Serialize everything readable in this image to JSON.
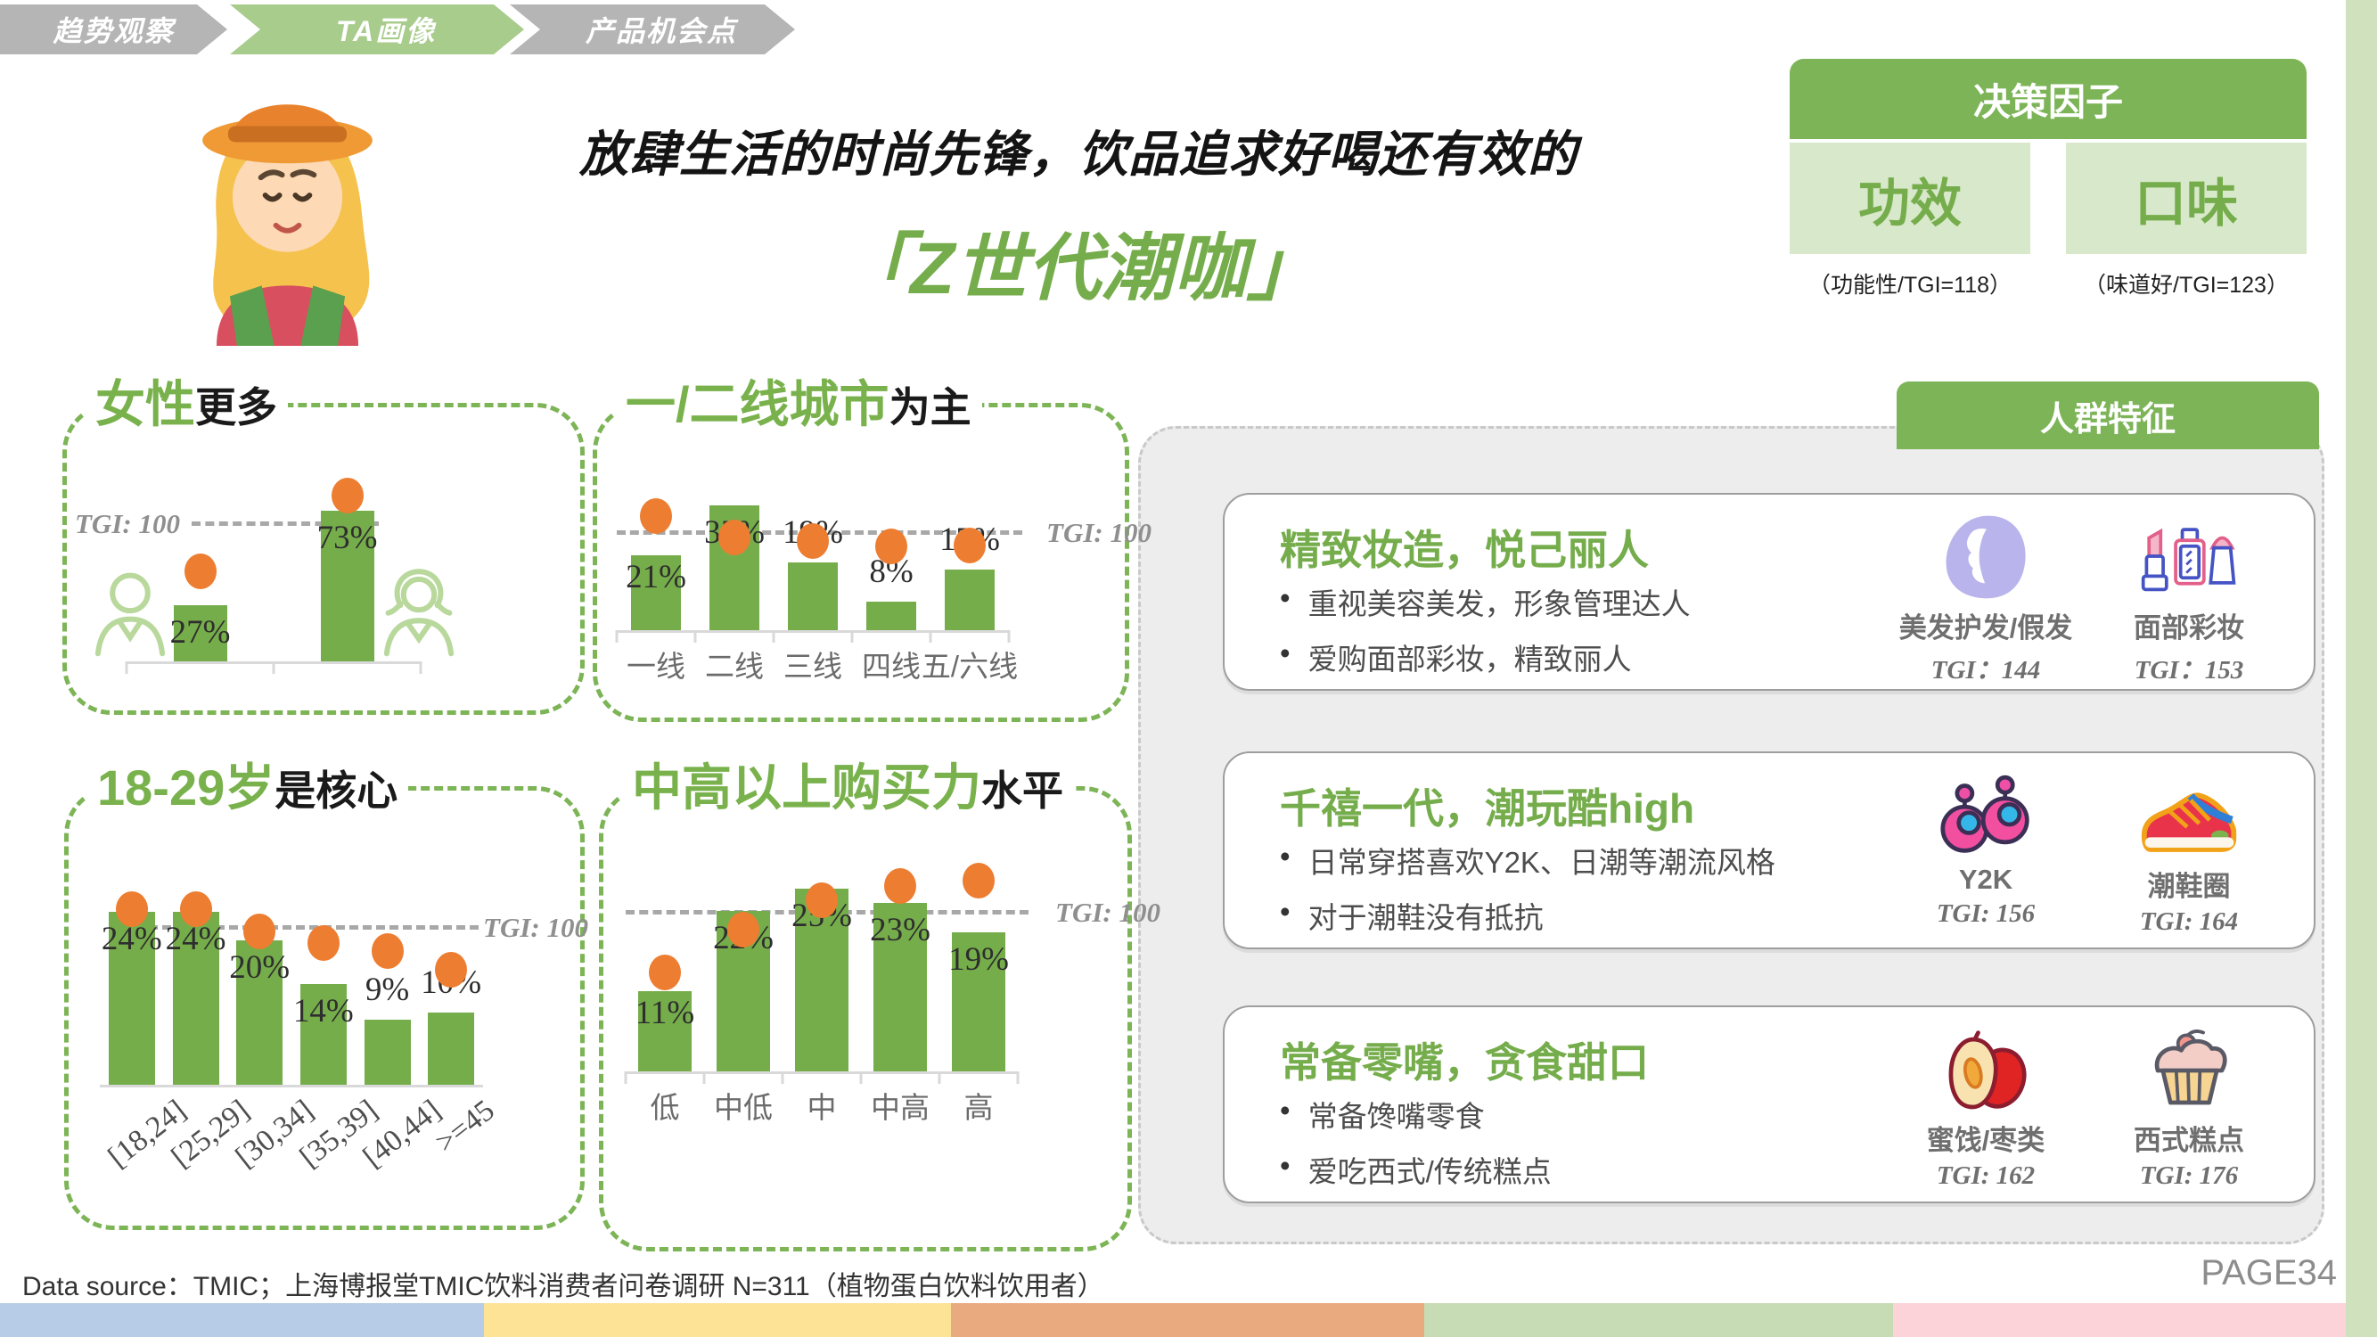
{
  "nav": {
    "items": [
      {
        "label": "趋势观察",
        "active": false
      },
      {
        "label": "TA画像",
        "active": true
      },
      {
        "label": "产品机会点",
        "active": false
      }
    ]
  },
  "header": {
    "title_line1": "放肆生活的时尚先锋，饮品追求好喝还有效的",
    "title_line2": "「Z世代潮咖」"
  },
  "decision_box": {
    "title": "决策因子",
    "factors": [
      {
        "name": "功效",
        "caption": "（功能性/TGI=118）"
      },
      {
        "name": "口味",
        "caption": "（味道好/TGI=123）"
      }
    ]
  },
  "chart_data": [
    {
      "id": "gender",
      "type": "bar",
      "title_green": "女性",
      "title_black": "更多",
      "categories": [
        "male-icon",
        "female-icon"
      ],
      "values": [
        27,
        73
      ],
      "ylim": [
        0,
        100
      ],
      "tgi_reference": 100,
      "tgi_label": "TGI: 100",
      "tgi_line_pct_scale": 65.5,
      "tgi_dots_pct_scale": [
        43.5,
        80
      ]
    },
    {
      "id": "city",
      "type": "bar",
      "title_green": "一/二线城市",
      "title_black": "为主",
      "categories": [
        "一线",
        "二线",
        "三线",
        "四线",
        "五/六线"
      ],
      "values": [
        21,
        35,
        19,
        8,
        17
      ],
      "ylim": [
        0,
        40
      ],
      "tgi_reference": 100,
      "tgi_label": "TGI: 100",
      "tgi_line_pct_scale": 26.75,
      "tgi_dots_pct_scale": [
        32,
        26,
        25,
        23.5,
        23.75
      ]
    },
    {
      "id": "age",
      "type": "bar",
      "title_green": "18-29岁",
      "title_black": "是核心",
      "categories": [
        "[18,24]",
        "[25,29]",
        "[30,34]",
        "[35,39]",
        "[40,44]",
        ">=45"
      ],
      "values": [
        24,
        24,
        20,
        14,
        9,
        10
      ],
      "ylim": [
        0,
        30
      ],
      "tgi_reference": 100,
      "tgi_label": "TGI: 100",
      "tgi_line_pct_scale": 21.5,
      "tgi_dots_pct_scale": [
        24.3,
        24.3,
        21.2,
        19.6,
        18.5,
        15.9
      ]
    },
    {
      "id": "power",
      "type": "bar",
      "title_green": "中高以上购买力",
      "title_black": "水平",
      "categories": [
        "低",
        "中低",
        "中",
        "中高",
        "高"
      ],
      "values": [
        11,
        22,
        25,
        23,
        19
      ],
      "ylim": [
        0,
        30
      ],
      "tgi_reference": 100,
      "tgi_label": "TGI: 100",
      "tgi_line_pct_scale": 21.5,
      "tgi_dots_pct_scale": [
        13.5,
        19.4,
        23.4,
        25.4,
        26.1
      ]
    }
  ],
  "persona_panel": {
    "title": "人群特征",
    "cards": [
      {
        "title": "精致妆造，悦己丽人",
        "bullets": [
          "重视美容美发，形象管理达人",
          "爱购面部彩妆，精致丽人"
        ],
        "tags": [
          {
            "icon": "woman-hair-icon",
            "label": "美发护发/假发",
            "tgi": "TGI：144"
          },
          {
            "icon": "cosmetics-icon",
            "label": "面部彩妆",
            "tgi": "TGI：153"
          }
        ]
      },
      {
        "title": "千禧一代，潮玩酷high",
        "bullets": [
          "日常穿搭喜欢Y2K、日潮等潮流风格",
          "对于潮鞋没有抵抗"
        ],
        "tags": [
          {
            "icon": "earrings-icon",
            "label": "Y2K",
            "tgi": "TGI: 156"
          },
          {
            "icon": "sneaker-icon",
            "label": "潮鞋圈",
            "tgi": "TGI: 164"
          }
        ]
      },
      {
        "title": "常备零嘴，贪食甜口",
        "bullets": [
          "常备馋嘴零食",
          "爱吃西式/传统糕点"
        ],
        "tags": [
          {
            "icon": "jujube-icon",
            "label": "蜜饯/枣类",
            "tgi": "TGI: 162"
          },
          {
            "icon": "cupcake-icon",
            "label": "西式糕点",
            "tgi": "TGI: 176"
          }
        ]
      }
    ]
  },
  "footer": {
    "source": "Data source：TMIC；上海博报堂TMIC饮料消费者问卷调研 N=311（植物蛋白饮料饮用者）",
    "page": "PAGE34"
  },
  "bottom_bar": {
    "segments": [
      {
        "color": "#b7cce6"
      },
      {
        "color": "#fde396"
      },
      {
        "color": "#eaaa80"
      },
      {
        "color": "#c7dcb4"
      },
      {
        "color": "#fbd3d8"
      }
    ]
  },
  "colors": {
    "green_main": "#76ad4b",
    "green_header": "#7cb457",
    "green_light": "#d8e8ca",
    "nav_green": "#a8cc8c",
    "nav_gray": "#b5b5b5",
    "orange_dot": "#ed7d31",
    "dash_gray": "#a8a8a8",
    "panel_gray": "#ededed",
    "strip_green": "#cfe2bd"
  }
}
